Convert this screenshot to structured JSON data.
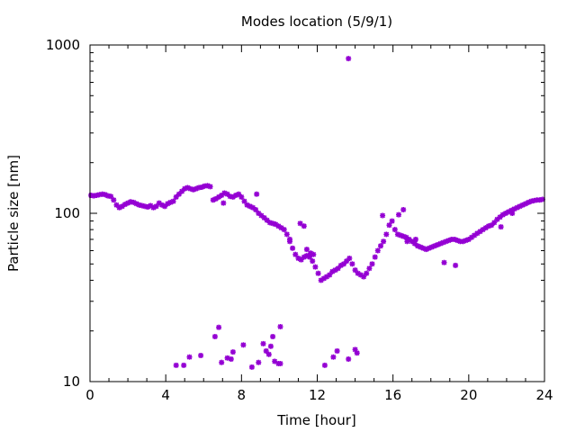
{
  "chart_data": {
    "type": "scatter",
    "title": "Modes location (5/9/1)",
    "xlabel": "Time [hour]",
    "ylabel": "Particle size [nm]",
    "xlim": [
      0,
      24
    ],
    "ylim": [
      10,
      1000
    ],
    "yscale": "log",
    "xticks": [
      0,
      4,
      8,
      12,
      16,
      20,
      24
    ],
    "yticks": [
      10,
      100,
      1000
    ],
    "xtick_labels": [
      "0",
      "4",
      "8",
      "12",
      "16",
      "20",
      "24"
    ],
    "ytick_labels": [
      "10",
      "100",
      "1000"
    ],
    "grid": false,
    "marker": "asterisk",
    "color": "#9400d3",
    "series": [
      {
        "x": [
          0.05,
          0.2,
          0.35,
          0.5,
          0.65,
          0.8,
          0.95,
          1.1,
          1.25,
          1.4,
          1.55,
          1.7,
          1.85,
          2.0,
          2.15,
          2.3,
          2.45,
          2.6,
          2.75,
          2.9,
          3.05,
          3.2,
          3.35,
          3.5,
          3.65,
          3.8,
          3.95,
          4.1,
          4.25,
          4.4,
          4.55,
          4.7,
          4.85,
          5.0,
          5.15,
          5.3,
          5.45,
          5.6,
          5.75,
          5.9,
          6.05,
          6.2,
          6.35,
          6.5,
          6.65,
          6.8,
          6.95,
          7.1,
          7.25,
          7.4,
          7.55,
          7.7,
          7.85,
          8.0,
          8.15,
          8.3,
          8.45,
          8.6,
          8.75,
          8.9,
          9.05,
          9.2,
          9.35,
          9.5,
          9.65,
          9.8,
          9.95,
          10.1,
          10.25,
          10.4,
          10.55,
          10.7,
          10.85,
          11.0,
          11.15,
          11.3,
          11.45,
          11.6,
          11.75,
          11.9,
          12.05,
          12.2,
          12.35,
          12.5,
          12.65,
          12.8,
          12.95,
          13.1,
          13.25,
          13.4,
          13.55,
          13.7,
          13.85,
          14.0,
          14.15,
          14.3,
          14.45,
          14.6,
          14.75,
          14.9,
          15.05,
          15.2,
          15.35,
          15.5,
          15.65,
          15.8,
          15.95,
          16.1,
          16.25,
          16.4,
          16.55,
          16.7,
          16.85,
          17.0,
          17.15,
          17.3,
          17.45,
          17.6,
          17.75,
          17.9,
          18.05,
          18.2,
          18.35,
          18.5,
          18.65,
          18.8,
          18.95,
          19.1,
          19.25,
          19.4,
          19.55,
          19.7,
          19.85,
          20.0,
          20.15,
          20.3,
          20.45,
          20.6,
          20.75,
          20.9,
          21.05,
          21.2,
          21.35,
          21.5,
          21.65,
          21.8,
          21.95,
          22.1,
          22.25,
          22.4,
          22.55,
          22.7,
          22.85,
          23.0,
          23.15,
          23.3,
          23.45,
          23.6,
          23.75,
          23.9
        ],
        "y": [
          128,
          127,
          128,
          129,
          130,
          129,
          127,
          126,
          120,
          112,
          108,
          110,
          113,
          115,
          117,
          116,
          114,
          112,
          111,
          110,
          109,
          111,
          108,
          110,
          115,
          112,
          110,
          114,
          116,
          118,
          125,
          130,
          135,
          140,
          142,
          140,
          138,
          140,
          142,
          143,
          145,
          146,
          144,
          120,
          122,
          125,
          128,
          132,
          130,
          126,
          125,
          128,
          130,
          125,
          118,
          112,
          110,
          108,
          105,
          100,
          97,
          94,
          91,
          88,
          87,
          86,
          84,
          82,
          80,
          75,
          68,
          62,
          57,
          54,
          53,
          55,
          56,
          55,
          52,
          48,
          44,
          40,
          41,
          42,
          43,
          45,
          46,
          47,
          49,
          50,
          52,
          54,
          50,
          46,
          44,
          43,
          42,
          44,
          47,
          50,
          55,
          60,
          64,
          68,
          75,
          85,
          90,
          80,
          75,
          74,
          73,
          72,
          70,
          68,
          66,
          64,
          63,
          62,
          61,
          62,
          63,
          64,
          65,
          66,
          67,
          68,
          69,
          70,
          70,
          69,
          68,
          68,
          69,
          70,
          72,
          74,
          76,
          78,
          80,
          82,
          84,
          85,
          88,
          92,
          95,
          98,
          100,
          102,
          104,
          106,
          108,
          110,
          112,
          114,
          116,
          118,
          119,
          120,
          120,
          121
        ],
        "name": ""
      },
      {
        "x": [
          7.05,
          8.8,
          10.55,
          11.1,
          11.3,
          11.45,
          11.65,
          11.8,
          13.65,
          15.45,
          16.3,
          16.55,
          16.75,
          17.2,
          18.7,
          19.3,
          21.7,
          22.3
        ],
        "y": [
          115,
          130,
          70,
          87,
          84,
          61,
          58,
          57,
          830,
          97,
          98,
          105,
          68,
          70,
          51,
          49,
          83,
          100
        ],
        "name": ""
      },
      {
        "x": [
          4.55,
          4.95,
          5.25,
          5.85,
          6.6,
          6.8,
          6.95,
          7.25,
          7.45,
          7.55,
          8.1,
          8.55,
          8.9,
          9.15,
          9.3,
          9.45,
          9.55,
          9.65,
          9.75,
          9.95,
          10.05,
          10.05,
          12.4,
          12.85,
          13.05,
          13.65,
          14.0,
          14.1
        ],
        "y": [
          12.5,
          12.5,
          14,
          14.3,
          18.5,
          21,
          13,
          13.8,
          13.6,
          15,
          16.5,
          12.2,
          13,
          16.8,
          15.2,
          14.5,
          16.2,
          18.5,
          13.2,
          12.8,
          12.8,
          21.2,
          12.5,
          14,
          15.2,
          13.6,
          15.5,
          14.8
        ],
        "name": ""
      }
    ]
  }
}
